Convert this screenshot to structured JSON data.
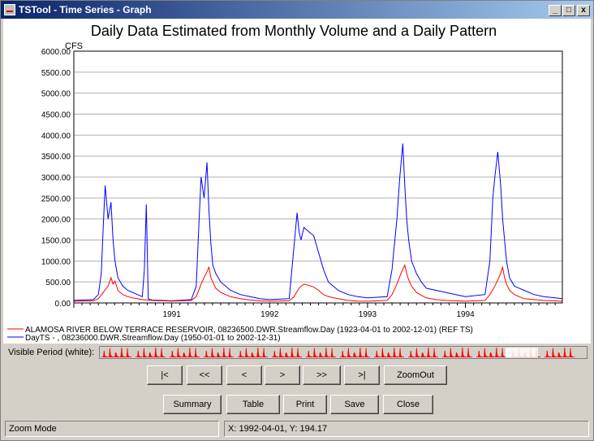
{
  "window": {
    "title": "TSTool - Time Series - Graph",
    "controls": {
      "minimize": "_",
      "maximize": "□",
      "close": "x"
    }
  },
  "graph": {
    "title": "Daily Data Estimated from Monthly Volume and a Daily Pattern",
    "units_label": "CFS",
    "legend": [
      {
        "label": "ALAMOSA RIVER BELOW TERRACE RESERVOIR, 08236500.DWR.Streamflow.Day (1923-04-01 to 2002-12-01) (REF TS)",
        "color": "#ff0000"
      },
      {
        "label": "DayTS - , 08236000.DWR.Streamflow.Day (1950-01-01 to 2002-12-31)",
        "color": "#0000ff"
      }
    ]
  },
  "chart_data": {
    "type": "line",
    "xlabel": "",
    "ylabel": "CFS",
    "ylim": [
      0,
      6000
    ],
    "y_ticks": [
      "0.00",
      "500.00",
      "1000.00",
      "1500.00",
      "2000.00",
      "2500.00",
      "3000.00",
      "3500.00",
      "4000.00",
      "4500.00",
      "5000.00",
      "5500.00",
      "6000.00"
    ],
    "x_ticks": [
      "1991",
      "1992",
      "1993",
      "1994"
    ],
    "x_tick_positions": [
      1991,
      1992,
      1993,
      1994
    ],
    "xlim": [
      1990.0,
      1994.99
    ],
    "grid": true,
    "legend_position": "bottom",
    "series": [
      {
        "name": "ALAMOSA RIVER BELOW TERRACE RESERVOIR, 08236500.DWR.Streamflow.Day (1923-04-01 to 2002-12-01) (REF TS)",
        "color": "#ff0000",
        "x": [
          1990.0,
          1990.2,
          1990.25,
          1990.3,
          1990.35,
          1990.38,
          1990.4,
          1990.42,
          1990.45,
          1990.5,
          1990.55,
          1990.6,
          1990.7,
          1990.8,
          1990.9,
          1991.0,
          1991.2,
          1991.25,
          1991.3,
          1991.35,
          1991.38,
          1991.4,
          1991.42,
          1991.45,
          1991.5,
          1991.55,
          1991.6,
          1991.7,
          1991.8,
          1991.9,
          1992.0,
          1992.2,
          1992.25,
          1992.3,
          1992.35,
          1992.4,
          1992.45,
          1992.5,
          1992.55,
          1992.6,
          1992.7,
          1992.8,
          1992.9,
          1993.0,
          1993.2,
          1993.25,
          1993.3,
          1993.35,
          1993.38,
          1993.4,
          1993.42,
          1993.45,
          1993.5,
          1993.55,
          1993.6,
          1993.7,
          1993.8,
          1993.9,
          1994.0,
          1994.2,
          1994.25,
          1994.3,
          1994.35,
          1994.38,
          1994.4,
          1994.42,
          1994.45,
          1994.5,
          1994.55,
          1994.6,
          1994.7,
          1994.8,
          1994.99
        ],
        "values": [
          40,
          50,
          100,
          250,
          400,
          600,
          450,
          520,
          300,
          200,
          150,
          120,
          80,
          60,
          50,
          45,
          60,
          150,
          450,
          700,
          850,
          600,
          500,
          350,
          250,
          200,
          150,
          100,
          70,
          50,
          40,
          50,
          150,
          350,
          450,
          420,
          380,
          300,
          200,
          150,
          100,
          60,
          45,
          40,
          60,
          200,
          450,
          750,
          900,
          700,
          550,
          400,
          250,
          180,
          120,
          80,
          60,
          50,
          40,
          60,
          200,
          400,
          650,
          850,
          600,
          450,
          300,
          200,
          150,
          100,
          80,
          60,
          40
        ]
      },
      {
        "name": "DayTS - , 08236000.DWR.Streamflow.Day (1950-01-01 to 2002-12-31)",
        "color": "#0000ff",
        "x": [
          1990.0,
          1990.2,
          1990.25,
          1990.28,
          1990.3,
          1990.32,
          1990.35,
          1990.38,
          1990.4,
          1990.42,
          1990.45,
          1990.5,
          1990.55,
          1990.6,
          1990.65,
          1990.7,
          1990.72,
          1990.74,
          1990.76,
          1990.78,
          1990.8,
          1990.9,
          1991.0,
          1991.2,
          1991.25,
          1991.28,
          1991.3,
          1991.33,
          1991.36,
          1991.38,
          1991.4,
          1991.42,
          1991.45,
          1991.5,
          1991.55,
          1991.6,
          1991.7,
          1991.8,
          1991.9,
          1992.0,
          1992.2,
          1992.28,
          1992.3,
          1992.32,
          1992.35,
          1992.4,
          1992.45,
          1992.5,
          1992.55,
          1992.6,
          1992.7,
          1992.8,
          1992.9,
          1993.0,
          1993.2,
          1993.25,
          1993.3,
          1993.33,
          1993.36,
          1993.38,
          1993.4,
          1993.42,
          1993.45,
          1993.5,
          1993.55,
          1993.6,
          1993.7,
          1993.8,
          1993.9,
          1994.0,
          1994.2,
          1994.25,
          1994.28,
          1994.3,
          1994.33,
          1994.36,
          1994.38,
          1994.4,
          1994.42,
          1994.45,
          1994.5,
          1994.55,
          1994.6,
          1994.7,
          1994.8,
          1994.99
        ],
        "values": [
          60,
          80,
          200,
          700,
          1800,
          2800,
          2000,
          2400,
          1500,
          1000,
          600,
          400,
          300,
          250,
          200,
          150,
          800,
          2350,
          100,
          80,
          70,
          60,
          50,
          80,
          400,
          2000,
          3000,
          2500,
          3350,
          2200,
          1400,
          900,
          700,
          500,
          400,
          300,
          200,
          150,
          100,
          80,
          100,
          2150,
          1700,
          1500,
          1800,
          1700,
          1600,
          1200,
          800,
          500,
          300,
          200,
          150,
          120,
          150,
          800,
          2000,
          3000,
          3800,
          2800,
          2000,
          1500,
          1000,
          700,
          500,
          350,
          300,
          250,
          200,
          150,
          200,
          1000,
          2500,
          3000,
          3600,
          2800,
          2000,
          1500,
          1000,
          600,
          400,
          350,
          300,
          200,
          150,
          100
        ]
      }
    ]
  },
  "visible_period": {
    "label": "Visible Period (white):"
  },
  "nav_buttons": [
    {
      "id": "first",
      "label": "|<"
    },
    {
      "id": "prev-page",
      "label": "<<"
    },
    {
      "id": "prev",
      "label": "<"
    },
    {
      "id": "next",
      "label": ">"
    },
    {
      "id": "next-page",
      "label": ">>"
    },
    {
      "id": "last",
      "label": ">|"
    },
    {
      "id": "zoomout",
      "label": "ZoomOut"
    }
  ],
  "action_buttons": [
    {
      "id": "summary",
      "label": "Summary"
    },
    {
      "id": "table",
      "label": "Table"
    },
    {
      "id": "print",
      "label": "Print"
    },
    {
      "id": "save",
      "label": "Save"
    },
    {
      "id": "close",
      "label": "Close"
    }
  ],
  "status": {
    "mode": "Zoom Mode",
    "coords": "X:  1992-04-01,  Y:  194.17"
  }
}
